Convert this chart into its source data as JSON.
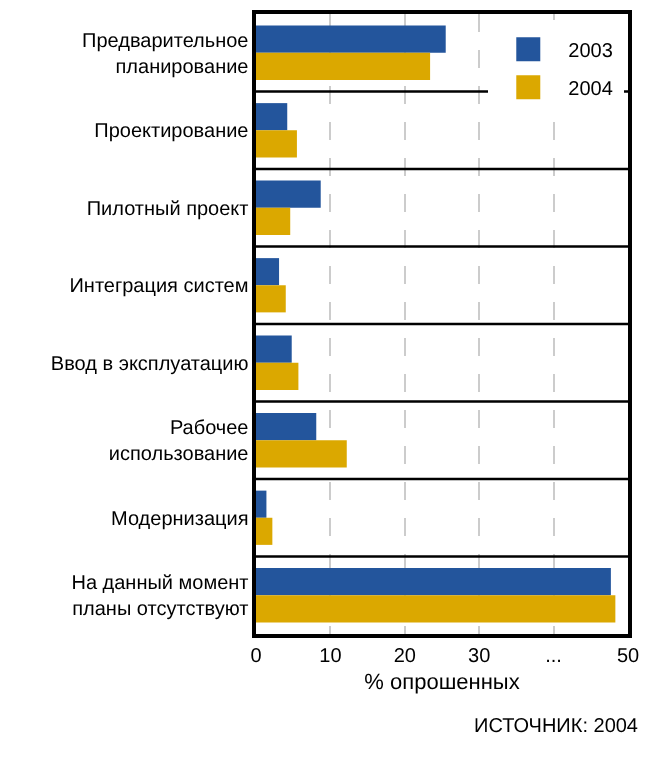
{
  "chart_data": {
    "type": "bar",
    "orientation": "horizontal",
    "categories": [
      "Предварительное\nпланирование",
      "Проектирование",
      "Пилотный проект",
      "Интеграция систем",
      "Ввод в эксплуатацию",
      "Рабочее\nиспользование",
      "Модернизация",
      "На данный момент\nпланы отсутствуют"
    ],
    "series": [
      {
        "name": "2003",
        "color": "#23559c",
        "values": [
          25.5,
          4.2,
          8.7,
          3.1,
          4.8,
          8.1,
          1.4,
          47.7
        ]
      },
      {
        "name": "2004",
        "color": "#dba800",
        "values": [
          23.4,
          5.5,
          4.6,
          4.0,
          5.7,
          12.2,
          2.2,
          48.3
        ]
      }
    ],
    "xlabel": "% опрошенных",
    "xlim": [
      0,
      50
    ],
    "xticks": [
      0,
      10,
      20,
      30,
      {
        "value": 40,
        "label": "..."
      },
      50
    ],
    "grid": "x",
    "legend": "top right",
    "annotations": [
      "ИСТОЧНИК: 2004"
    ]
  }
}
